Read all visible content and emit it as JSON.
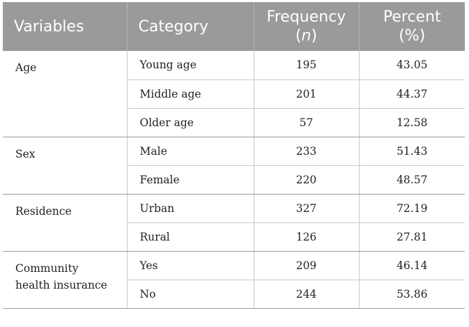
{
  "headers": {
    "variables": "Variables",
    "category": "Category",
    "frequency": "Frequency",
    "frequency_sym": "n",
    "percent": "Percent",
    "percent_sym": "(%)"
  },
  "groups": [
    {
      "variable": "Age",
      "rows": [
        {
          "category": "Young age",
          "frequency": "195",
          "percent": "43.05"
        },
        {
          "category": "Middle age",
          "frequency": "201",
          "percent": "44.37"
        },
        {
          "category": "Older age",
          "frequency": "57",
          "percent": "12.58"
        }
      ]
    },
    {
      "variable": "Sex",
      "rows": [
        {
          "category": "Male",
          "frequency": "233",
          "percent": "51.43"
        },
        {
          "category": "Female",
          "frequency": "220",
          "percent": "48.57"
        }
      ]
    },
    {
      "variable": "Residence",
      "rows": [
        {
          "category": "Urban",
          "frequency": "327",
          "percent": "72.19"
        },
        {
          "category": "Rural",
          "frequency": "126",
          "percent": "27.81"
        }
      ]
    },
    {
      "variable": "Community health insurance",
      "rows": [
        {
          "category": "Yes",
          "frequency": "209",
          "percent": "46.14"
        },
        {
          "category": "No",
          "frequency": "244",
          "percent": "53.86"
        }
      ]
    }
  ]
}
